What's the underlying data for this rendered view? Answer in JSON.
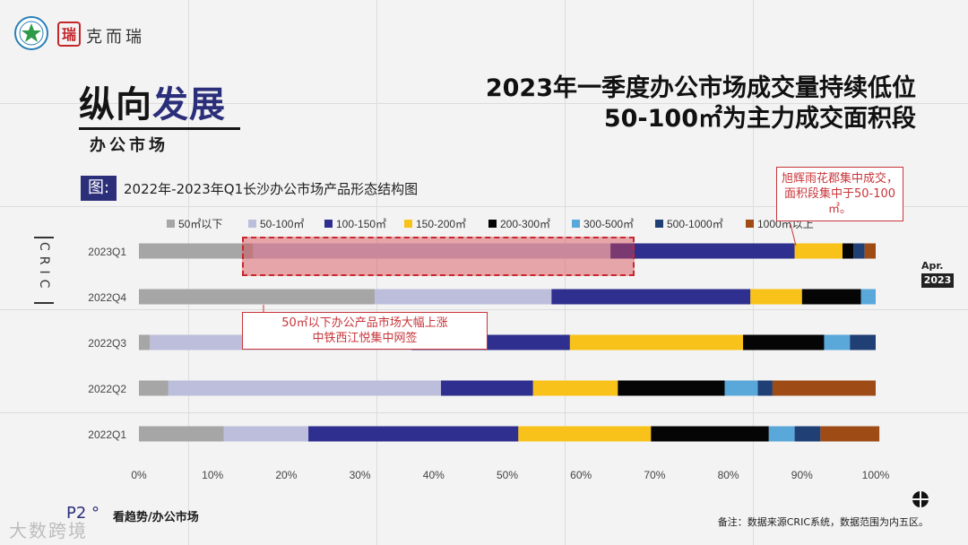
{
  "header": {
    "logo_seal": "瑞",
    "logo_text": "克而瑞",
    "section_title_a": "纵向",
    "section_title_b": "发展",
    "section_sub": "办公市场",
    "headline_line1": "2023年一季度办公市场成交量持续低位",
    "headline_line2": "50-100㎡为主力成交面积段"
  },
  "figure": {
    "tag": "图:",
    "title": "2022年-2023年Q1长沙办公市场产品形态结构图"
  },
  "side": {
    "cric": "CRIC",
    "apr": "Apr.",
    "year": "2023"
  },
  "callouts": {
    "right": "旭辉雨花郡集中成交，面积段集中于50-100㎡。",
    "mid_line1": "50㎡以下办公产品市场大幅上涨",
    "mid_line2": "中铁西江悦集中网签"
  },
  "footer": {
    "page": "P2 °",
    "page_sub": "看趋势/办公市场",
    "watermark": "大数跨境",
    "note": "备注：数据来源CRIC系统，数据范围为内五区。"
  },
  "colors": {
    "accent": "#2b2f7a",
    "callout_red": "#c8353a"
  },
  "chart_data": {
    "type": "bar",
    "orientation": "horizontal",
    "stacked": true,
    "percent": true,
    "categories": [
      "2023Q1",
      "2022Q4",
      "2022Q3",
      "2022Q2",
      "2022Q1"
    ],
    "series": [
      {
        "name": "50㎡以下",
        "color": "#a6a6a6",
        "values": [
          15.5,
          32,
          1.5,
          4,
          11.5
        ]
      },
      {
        "name": "50-100㎡",
        "color": "#bdbedc",
        "values": [
          48.5,
          24,
          35.5,
          37,
          11.5
        ]
      },
      {
        "name": "100-150㎡",
        "color": "#2e2f8e",
        "values": [
          25,
          27,
          21.5,
          12.5,
          28.5
        ]
      },
      {
        "name": "150-200㎡",
        "color": "#f8c21a",
        "values": [
          6.5,
          7,
          23.5,
          11.5,
          18
        ]
      },
      {
        "name": "200-300㎡",
        "color": "#050505",
        "values": [
          1.5,
          8,
          11,
          14.5,
          16
        ]
      },
      {
        "name": "300-500㎡",
        "color": "#5aa7d9",
        "values": [
          0,
          2,
          3.5,
          4.5,
          3.5
        ]
      },
      {
        "name": "500-1000㎡",
        "color": "#1f3f75",
        "values": [
          1.5,
          0,
          3.5,
          2,
          3.5
        ]
      },
      {
        "name": "1000㎡以上",
        "color": "#9e4b16",
        "values": [
          1.5,
          0,
          0,
          14,
          8
        ]
      }
    ],
    "xlim": [
      0,
      100
    ],
    "xticks": [
      "0%",
      "10%",
      "20%",
      "30%",
      "40%",
      "50%",
      "60%",
      "70%",
      "80%",
      "90%",
      "100%"
    ],
    "legend": "top",
    "grid": false
  }
}
